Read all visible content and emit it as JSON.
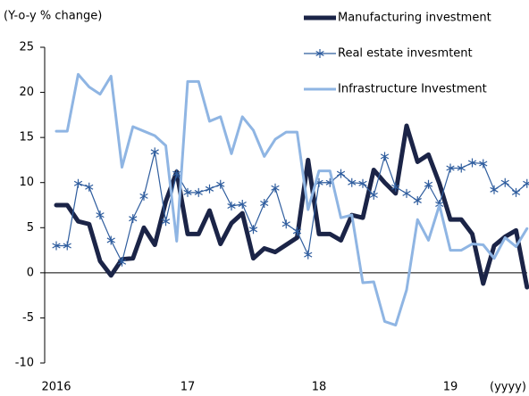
{
  "chart_data": {
    "type": "line",
    "y_label": "(Y-o-y % change)",
    "x_label": "(yyyy)",
    "categories": [
      "2016",
      null,
      null,
      null,
      null,
      null,
      null,
      null,
      null,
      null,
      null,
      null,
      "17",
      null,
      null,
      null,
      null,
      null,
      null,
      null,
      null,
      null,
      null,
      null,
      "18",
      null,
      null,
      null,
      null,
      null,
      null,
      null,
      null,
      null,
      null,
      null,
      "19",
      null,
      null,
      null,
      null,
      null,
      null,
      null
    ],
    "ylim": [
      -10,
      25
    ],
    "yticks": [
      -10,
      -5,
      0,
      5,
      10,
      15,
      20,
      25
    ],
    "grid": false,
    "legend": "upper right",
    "series": [
      {
        "name": "Manufacturing investment",
        "color": "#1b2447",
        "line_width": 5,
        "marker": "none",
        "values": [
          7.5,
          7.5,
          5.7,
          5.4,
          1.3,
          -0.3,
          1.5,
          1.6,
          5,
          3.1,
          7.9,
          11.2,
          4.3,
          4.3,
          6.9,
          3.2,
          5.5,
          6.6,
          1.6,
          2.7,
          2.3,
          3.1,
          3.9,
          12.5,
          4.3,
          4.3,
          3.6,
          6.4,
          6.1,
          11.4,
          10,
          8.8,
          16.3,
          12.3,
          13.1,
          9.9,
          5.9,
          5.9,
          4.3,
          -1.2,
          3.0,
          4.0,
          4.7,
          -1.6
        ]
      },
      {
        "name": "Real estate invesmtent",
        "color": "#2f5d9e",
        "line_width": 1.2,
        "marker": "asterisk",
        "values": [
          3,
          3,
          9.9,
          9.5,
          6.4,
          3.6,
          1.2,
          6,
          8.5,
          13.4,
          5.7,
          11,
          8.9,
          8.9,
          9.3,
          9.8,
          7.4,
          7.6,
          4.8,
          7.7,
          9.4,
          5.4,
          4.6,
          2,
          10,
          10,
          11,
          10,
          9.9,
          8.6,
          12.9,
          9.5,
          8.8,
          8,
          9.8,
          7.6,
          11.6,
          11.6,
          12.2,
          12.1,
          9.2,
          10,
          8.9,
          9.9
        ]
      },
      {
        "name": "Infrastructure Investment",
        "color": "#8fb5e3",
        "line_width": 3,
        "marker": "none",
        "values": [
          15.7,
          15.7,
          22,
          20.6,
          19.8,
          21.8,
          11.7,
          16.2,
          15.7,
          15.2,
          14.1,
          3.5,
          21.2,
          21.2,
          16.8,
          17.3,
          13.2,
          17.3,
          15.8,
          12.9,
          14.8,
          15.6,
          15.6,
          7,
          11.3,
          11.3,
          6.1,
          6.4,
          -1.1,
          -1,
          -5.4,
          -5.8,
          -1.9,
          5.9,
          3.6,
          7.5,
          2.5,
          2.5,
          3.2,
          3.1,
          1.6,
          3.9,
          2.9,
          4.9
        ]
      }
    ]
  }
}
